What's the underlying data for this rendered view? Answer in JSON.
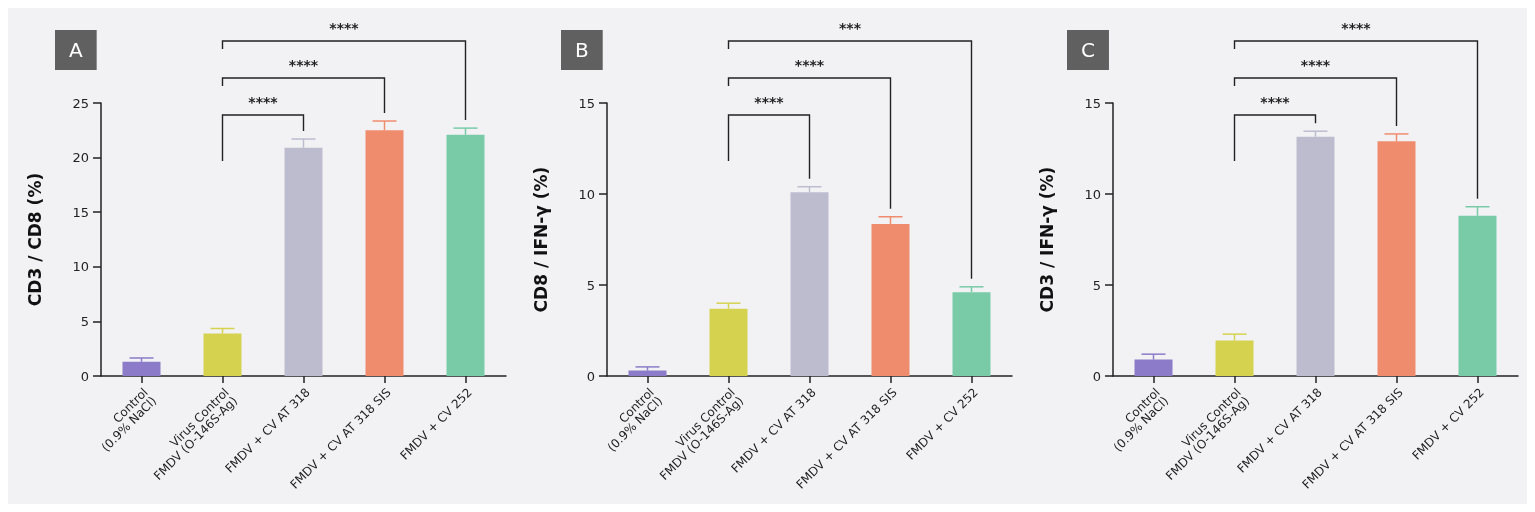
{
  "chart_data": [
    {
      "type": "bar",
      "title": "A",
      "ylabel": "CD3 / CD8 (%)",
      "categories": [
        "Control\n(0.9% NaCl)",
        "Virus Control\nFMDV (O-146S-Ag)",
        "FMDV + CV AT 318",
        "FMDV + CV AT 318 SIS",
        "FMDV + CV 252"
      ],
      "values": [
        1.3,
        3.9,
        20.9,
        22.5,
        22.1
      ],
      "errors": [
        0.35,
        0.45,
        0.8,
        0.85,
        0.6
      ],
      "colors": [
        "#8b7bc8",
        "#d5d250",
        "#bdbccf",
        "#f08c6e",
        "#79cba8"
      ],
      "ylim": [
        0,
        25
      ],
      "yticks": [
        0,
        5,
        10,
        15,
        20,
        25
      ],
      "annotations": [
        "****",
        "****",
        "****"
      ]
    },
    {
      "type": "bar",
      "title": "B",
      "ylabel": "CD8 / IFN-γ (%)",
      "categories": [
        "Control\n(0.9% NaCl)",
        "Virus Control\nFMDV (O-146S-Ag)",
        "FMDV + CV AT 318",
        "FMDV + CV AT 318 SIS",
        "FMDV + CV 252"
      ],
      "values": [
        0.3,
        3.7,
        10.1,
        8.35,
        4.6
      ],
      "errors": [
        0.2,
        0.3,
        0.3,
        0.4,
        0.3
      ],
      "colors": [
        "#8b7bc8",
        "#d5d250",
        "#bdbccf",
        "#f08c6e",
        "#79cba8"
      ],
      "ylim": [
        0,
        15
      ],
      "yticks": [
        0,
        5,
        10,
        15
      ],
      "annotations": [
        "****",
        "****",
        "***"
      ]
    },
    {
      "type": "bar",
      "title": "C",
      "ylabel": "CD3 / IFN-γ (%)",
      "categories": [
        "Control\n(0.9% NaCl)",
        "Virus Control\nFMDV (O-146S-Ag)",
        "FMDV + CV AT 318",
        "FMDV + CV AT 318 SIS",
        "FMDV + CV 252"
      ],
      "values": [
        0.9,
        1.95,
        13.15,
        12.9,
        8.8
      ],
      "errors": [
        0.3,
        0.35,
        0.3,
        0.4,
        0.5
      ],
      "colors": [
        "#8b7bc8",
        "#d5d250",
        "#bdbccf",
        "#f08c6e",
        "#79cba8"
      ],
      "ylim": [
        0,
        15
      ],
      "yticks": [
        0,
        5,
        10,
        15
      ],
      "annotations": [
        "****",
        "****",
        "****"
      ]
    }
  ]
}
